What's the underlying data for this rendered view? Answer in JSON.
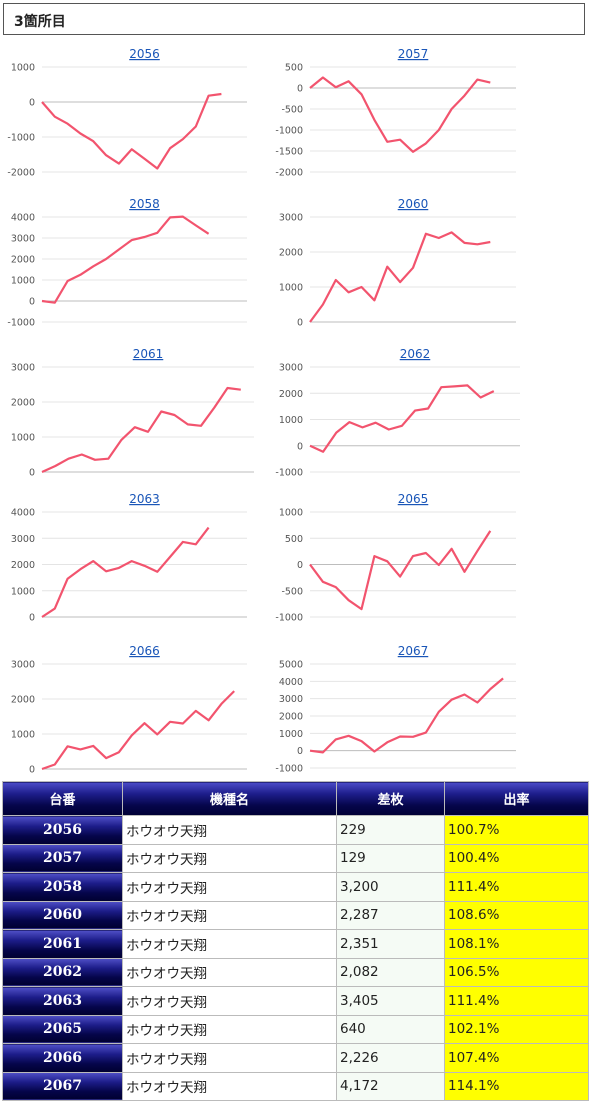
{
  "header": {
    "title": "3箇所目"
  },
  "colors": {
    "series_line": "#f2546e",
    "rate_highlight": "#ffff00",
    "header_navy": "#05054a",
    "link": "#1a56b8"
  },
  "chart_data": [
    {
      "type": "line",
      "title": "2056",
      "ylim": [
        -2000,
        1000
      ],
      "yticks": [
        1000,
        0,
        -1000,
        -2000
      ],
      "values": [
        0,
        -420,
        -620,
        -900,
        -1120,
        -1520,
        -1760,
        -1350,
        -1620,
        -1900,
        -1320,
        -1060,
        -700,
        180,
        229
      ]
    },
    {
      "type": "line",
      "title": "2057",
      "ylim": [
        -2000,
        500
      ],
      "yticks": [
        500,
        0,
        -500,
        -1000,
        -1500,
        -2000
      ],
      "values": [
        0,
        250,
        20,
        160,
        -150,
        -760,
        -1280,
        -1230,
        -1520,
        -1320,
        -1000,
        -500,
        -180,
        200,
        129
      ]
    },
    {
      "type": "line",
      "title": "2058",
      "ylim": [
        -1000,
        4000
      ],
      "yticks": [
        4000,
        3000,
        2000,
        1000,
        0,
        -1000
      ],
      "values": [
        0,
        -80,
        950,
        1250,
        1650,
        2000,
        2450,
        2900,
        3050,
        3250,
        3980,
        4020,
        3600,
        3200
      ]
    },
    {
      "type": "line",
      "title": "2060",
      "ylim": [
        0,
        3000
      ],
      "yticks": [
        3000,
        2000,
        1000,
        0
      ],
      "values": [
        0,
        500,
        1200,
        850,
        1000,
        620,
        1580,
        1140,
        1550,
        2520,
        2400,
        2560,
        2260,
        2220,
        2287
      ]
    },
    {
      "type": "line",
      "title": "2061",
      "ylim": [
        0,
        3000
      ],
      "yticks": [
        3000,
        2000,
        1000,
        0
      ],
      "values": [
        0,
        170,
        380,
        500,
        350,
        380,
        920,
        1280,
        1150,
        1730,
        1630,
        1360,
        1320,
        1840,
        2400,
        2351
      ]
    },
    {
      "type": "line",
      "title": "2062",
      "ylim": [
        -1000,
        3000
      ],
      "yticks": [
        3000,
        2000,
        1000,
        0,
        -1000
      ],
      "values": [
        0,
        -230,
        500,
        900,
        700,
        880,
        620,
        760,
        1340,
        1420,
        2230,
        2260,
        2300,
        1840,
        2082
      ]
    },
    {
      "type": "line",
      "title": "2063",
      "ylim": [
        0,
        4000
      ],
      "yticks": [
        4000,
        3000,
        2000,
        1000,
        0
      ],
      "values": [
        0,
        320,
        1460,
        1820,
        2130,
        1740,
        1870,
        2130,
        1950,
        1720,
        2290,
        2860,
        2770,
        3405
      ]
    },
    {
      "type": "line",
      "title": "2065",
      "ylim": [
        -1000,
        1000
      ],
      "yticks": [
        1000,
        500,
        0,
        -500,
        -1000
      ],
      "values": [
        0,
        -330,
        -430,
        -680,
        -850,
        160,
        60,
        -230,
        160,
        220,
        -10,
        300,
        -140,
        260,
        640
      ]
    },
    {
      "type": "line",
      "title": "2066",
      "ylim": [
        0,
        3000
      ],
      "yticks": [
        3000,
        2000,
        1000,
        0
      ],
      "values": [
        0,
        130,
        650,
        560,
        660,
        310,
        480,
        960,
        1310,
        990,
        1350,
        1300,
        1660,
        1390,
        1860,
        2226
      ]
    },
    {
      "type": "line",
      "title": "2067",
      "ylim": [
        -1000,
        5000
      ],
      "yticks": [
        5000,
        4000,
        3000,
        2000,
        1000,
        0,
        -1000
      ],
      "values": [
        0,
        -100,
        650,
        860,
        550,
        -50,
        480,
        820,
        800,
        1040,
        2240,
        2940,
        3240,
        2780,
        3550,
        4172
      ]
    }
  ],
  "table": {
    "headers": [
      "台番",
      "機種名",
      "差枚",
      "出率"
    ],
    "rows": [
      {
        "id": "2056",
        "name": "ホウオウ天翔",
        "diff": "229",
        "rate": "100.7%"
      },
      {
        "id": "2057",
        "name": "ホウオウ天翔",
        "diff": "129",
        "rate": "100.4%"
      },
      {
        "id": "2058",
        "name": "ホウオウ天翔",
        "diff": "3,200",
        "rate": "111.4%"
      },
      {
        "id": "2060",
        "name": "ホウオウ天翔",
        "diff": "2,287",
        "rate": "108.6%"
      },
      {
        "id": "2061",
        "name": "ホウオウ天翔",
        "diff": "2,351",
        "rate": "108.1%"
      },
      {
        "id": "2062",
        "name": "ホウオウ天翔",
        "diff": "2,082",
        "rate": "106.5%"
      },
      {
        "id": "2063",
        "name": "ホウオウ天翔",
        "diff": "3,405",
        "rate": "111.4%"
      },
      {
        "id": "2065",
        "name": "ホウオウ天翔",
        "diff": "640",
        "rate": "102.1%"
      },
      {
        "id": "2066",
        "name": "ホウオウ天翔",
        "diff": "2,226",
        "rate": "107.4%"
      },
      {
        "id": "2067",
        "name": "ホウオウ天翔",
        "diff": "4,172",
        "rate": "114.1%"
      }
    ]
  }
}
